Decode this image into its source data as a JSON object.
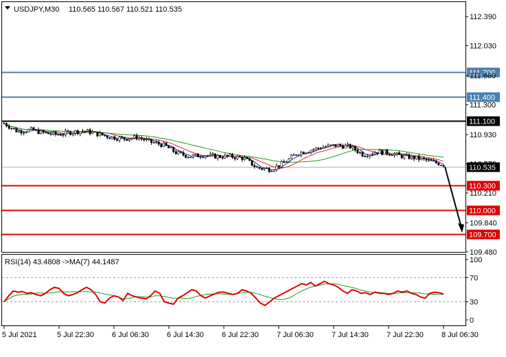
{
  "chart_data": {
    "type": "candlestick",
    "symbol_header": "USDJPY,M30",
    "ohlc_header": "110.565 110.567 110.521 110.535",
    "price_axis": {
      "range": [
        109.48,
        112.57
      ],
      "ticks": [
        "112.390",
        "112.030",
        "111.660",
        "111.300",
        "110.930",
        "110.570",
        "110.210",
        "109.840",
        "109.480"
      ]
    },
    "levels": [
      {
        "value": 111.7,
        "label": "111.700",
        "color": "#4a7fb0"
      },
      {
        "value": 111.4,
        "label": "111.400",
        "color": "#4a7fb0"
      },
      {
        "value": 111.1,
        "label": "111.100",
        "color": "#000000"
      },
      {
        "value": 110.3,
        "label": "110.300",
        "color": "#e00000"
      },
      {
        "value": 110.0,
        "label": "110.000",
        "color": "#e00000"
      },
      {
        "value": 109.7,
        "label": "109.700",
        "color": "#e00000"
      }
    ],
    "current_price": {
      "value": 110.535,
      "label": "110.535"
    },
    "price_path": [
      111.07,
      110.97,
      110.99,
      110.95,
      110.93,
      110.96,
      110.98,
      110.94,
      110.9,
      110.88,
      110.9,
      110.84,
      110.8,
      110.7,
      110.66,
      110.68,
      110.66,
      110.66,
      110.64,
      110.52,
      110.5,
      110.58,
      110.7,
      110.74,
      110.78,
      110.8,
      110.78,
      110.68,
      110.72,
      110.7,
      110.66,
      110.64,
      110.6,
      110.56
    ],
    "forecast_arrow": {
      "from": 110.535,
      "to": 109.7
    },
    "rsi": {
      "header": "RSI(14) 43.4808 ->MA(7) 44.1487",
      "ticks": [
        "100",
        "70",
        "30",
        "0"
      ],
      "levels": [
        70,
        30
      ],
      "values": [
        30,
        40,
        48,
        46,
        47,
        44,
        45,
        42,
        40,
        44,
        50,
        54,
        52,
        44,
        40,
        42,
        45,
        50,
        54,
        50,
        42,
        30,
        28,
        36,
        40,
        38,
        32,
        44,
        40,
        38,
        36,
        35,
        40,
        48,
        44,
        30,
        28,
        26,
        36,
        40,
        45,
        50,
        48,
        40,
        36,
        40,
        43,
        46,
        46,
        44,
        42,
        44,
        50,
        48,
        44,
        36,
        28,
        24,
        30,
        36,
        40,
        44,
        48,
        52,
        56,
        60,
        58,
        62,
        56,
        60,
        64,
        60,
        58,
        54,
        48,
        44,
        50,
        48,
        44,
        45,
        42,
        46,
        44,
        44,
        42,
        44,
        48,
        46,
        48,
        44,
        42,
        38,
        36,
        44,
        46,
        45,
        43
      ]
    },
    "time_axis": [
      "5 Jul 2021",
      "5 Jul 22:30",
      "6 Jul 06:30",
      "6 Jul 14:30",
      "6 Jul 22:30",
      "7 Jul 06:30",
      "7 Jul 14:30",
      "7 Jul 22:30",
      "8 Jul 06:30"
    ]
  }
}
